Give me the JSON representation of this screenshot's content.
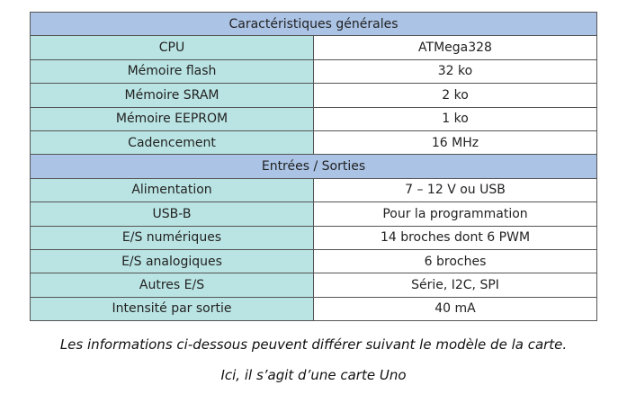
{
  "sections": [
    {
      "title": "Caractéristiques générales",
      "rows": [
        {
          "label": "CPU",
          "value": "ATMega328"
        },
        {
          "label": "Mémoire flash",
          "value": "32 ko"
        },
        {
          "label": "Mémoire SRAM",
          "value": "2 ko"
        },
        {
          "label": "Mémoire EEPROM",
          "value": "1 ko"
        },
        {
          "label": "Cadencement",
          "value": "16 MHz"
        }
      ]
    },
    {
      "title": "Entrées / Sorties",
      "rows": [
        {
          "label": "Alimentation",
          "value": "7 – 12 V ou USB"
        },
        {
          "label": "USB-B",
          "value": "Pour la programmation"
        },
        {
          "label": "E/S numériques",
          "value": "14 broches dont 6 PWM"
        },
        {
          "label": "E/S analogiques",
          "value": "6 broches"
        },
        {
          "label": "Autres E/S",
          "value": "Série, I2C, SPI"
        },
        {
          "label": "Intensité par sortie",
          "value": "40 mA"
        }
      ]
    }
  ],
  "caption": {
    "line1": "Les informations ci-dessous peuvent différer suivant le modèle de la carte.",
    "line2": "Ici, il s’agit d’une carte Uno"
  },
  "colors": {
    "section_header": "#abc3e5",
    "label_cell": "#bae4e3"
  }
}
